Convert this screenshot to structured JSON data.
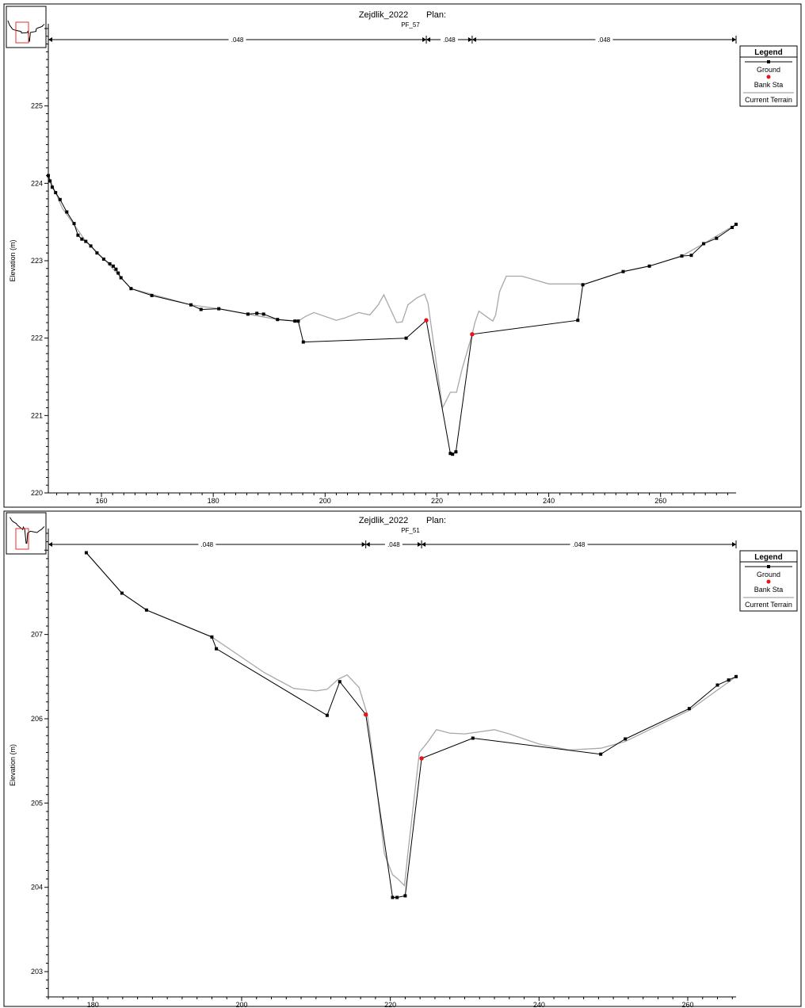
{
  "colors": {
    "ground": "#000000",
    "bank_sta": "#e8141b",
    "terrain": "#a8a8a8",
    "frame": "#000000",
    "inset_box": "#e03030"
  },
  "chart_data": [
    {
      "type": "line",
      "title": "Zejdlik_2022",
      "plan_label": "Plan:",
      "subtitle": "PF_57",
      "ylabel": "Elevation (m)",
      "xlabel": "",
      "xlim": [
        150.5,
        273.5
      ],
      "ylim": [
        220,
        226
      ],
      "x_ticks": [
        160,
        180,
        200,
        220,
        240,
        260
      ],
      "y_ticks": [
        220,
        221,
        222,
        223,
        224,
        225
      ],
      "legend": {
        "title": "Legend",
        "position": "top-right",
        "entries": [
          "Ground",
          "Bank Sta",
          "Current Terrain"
        ]
      },
      "mannings": {
        "breaks": [
          150.5,
          218.1,
          226.3,
          273.5
        ],
        "values": [
          ".048",
          ".048",
          ".048"
        ]
      },
      "series": [
        {
          "name": "Ground",
          "points": [
            [
              150.5,
              224.1
            ],
            [
              150.8,
              224.03
            ],
            [
              151.2,
              223.95
            ],
            [
              151.8,
              223.88
            ],
            [
              152.6,
              223.79
            ],
            [
              153.8,
              223.63
            ],
            [
              155.1,
              223.48
            ],
            [
              155.8,
              223.33
            ],
            [
              156.5,
              223.28
            ],
            [
              157.2,
              223.25
            ],
            [
              158.1,
              223.19
            ],
            [
              159.2,
              223.1
            ],
            [
              160.4,
              223.02
            ],
            [
              161.5,
              222.96
            ],
            [
              162.1,
              222.93
            ],
            [
              162.6,
              222.89
            ],
            [
              163.0,
              222.84
            ],
            [
              163.5,
              222.78
            ],
            [
              165.3,
              222.64
            ],
            [
              169.0,
              222.55
            ],
            [
              176.0,
              222.43
            ],
            [
              177.8,
              222.37
            ],
            [
              181.0,
              222.38
            ],
            [
              186.2,
              222.31
            ],
            [
              187.8,
              222.32
            ],
            [
              189.0,
              222.31
            ],
            [
              191.5,
              222.24
            ],
            [
              194.6,
              222.22
            ],
            [
              195.2,
              222.22
            ],
            [
              196.1,
              221.95
            ],
            [
              214.5,
              222.0
            ],
            [
              218.1,
              222.23
            ],
            [
              222.4,
              220.51
            ],
            [
              222.8,
              220.5
            ],
            [
              223.4,
              220.53
            ],
            [
              226.3,
              222.05
            ],
            [
              245.2,
              222.23
            ],
            [
              246.1,
              222.69
            ],
            [
              253.3,
              222.86
            ],
            [
              258.0,
              222.93
            ],
            [
              263.8,
              223.06
            ],
            [
              265.5,
              223.07
            ],
            [
              267.7,
              223.22
            ],
            [
              270.0,
              223.29
            ],
            [
              272.8,
              223.43
            ],
            [
              273.5,
              223.47
            ]
          ]
        },
        {
          "name": "Bank Sta",
          "points": [
            [
              218.1,
              222.23
            ],
            [
              226.3,
              222.05
            ]
          ]
        },
        {
          "name": "Current Terrain",
          "points": [
            [
              150.5,
              224.1
            ],
            [
              153.0,
              223.68
            ],
            [
              157.0,
              223.27
            ],
            [
              161.0,
              222.98
            ],
            [
              165.3,
              222.64
            ],
            [
              176.0,
              222.43
            ],
            [
              181.0,
              222.38
            ],
            [
              191.5,
              222.24
            ],
            [
              195.2,
              222.22
            ],
            [
              196.5,
              222.28
            ],
            [
              198.0,
              222.33
            ],
            [
              202.0,
              222.23
            ],
            [
              203.5,
              222.26
            ],
            [
              206.0,
              222.33
            ],
            [
              208.0,
              222.3
            ],
            [
              209.5,
              222.43
            ],
            [
              210.5,
              222.56
            ],
            [
              212.8,
              222.2
            ],
            [
              213.8,
              222.21
            ],
            [
              214.8,
              222.43
            ],
            [
              216.4,
              222.52
            ],
            [
              217.8,
              222.57
            ],
            [
              218.4,
              222.45
            ],
            [
              221.0,
              221.1
            ],
            [
              221.7,
              221.2
            ],
            [
              222.4,
              221.3
            ],
            [
              223.5,
              221.3
            ],
            [
              224.5,
              221.6
            ],
            [
              226.3,
              222.05
            ],
            [
              226.8,
              222.2
            ],
            [
              227.5,
              222.35
            ],
            [
              229.0,
              222.27
            ],
            [
              230.0,
              222.22
            ],
            [
              230.5,
              222.3
            ],
            [
              231.2,
              222.6
            ],
            [
              232.4,
              222.8
            ],
            [
              235.2,
              222.8
            ],
            [
              237.6,
              222.75
            ],
            [
              240.0,
              222.7
            ],
            [
              243.0,
              222.7
            ],
            [
              245.5,
              222.7
            ],
            [
              246.1,
              222.69
            ],
            [
              253.3,
              222.86
            ],
            [
              258.0,
              222.93
            ],
            [
              263.8,
              223.06
            ],
            [
              267.7,
              223.22
            ],
            [
              273.5,
              223.47
            ]
          ]
        }
      ]
    },
    {
      "type": "line",
      "title": "Zejdlik_2022",
      "plan_label": "Plan:",
      "subtitle": "PF_51",
      "ylabel": "Elevation (m)",
      "xlabel": "",
      "xlim": [
        174,
        266.5
      ],
      "ylim": [
        202.7,
        208.2
      ],
      "x_ticks": [
        180,
        200,
        220,
        240,
        260
      ],
      "y_ticks": [
        203,
        204,
        205,
        206,
        207
      ],
      "legend": {
        "title": "Legend",
        "position": "top-right",
        "entries": [
          "Ground",
          "Bank Sta",
          "Current Terrain"
        ]
      },
      "mannings": {
        "breaks": [
          174,
          216.7,
          224.2,
          266.5
        ],
        "values": [
          ".048",
          ".048",
          ".048"
        ]
      },
      "series": [
        {
          "name": "Ground",
          "points": [
            [
              179.1,
              207.97
            ],
            [
              183.9,
              207.49
            ],
            [
              187.2,
              207.29
            ],
            [
              196.0,
              206.97
            ],
            [
              196.6,
              206.83
            ],
            [
              211.5,
              206.04
            ],
            [
              213.2,
              206.44
            ],
            [
              216.7,
              206.05
            ],
            [
              220.3,
              203.88
            ],
            [
              220.9,
              203.88
            ],
            [
              222.0,
              203.9
            ],
            [
              224.2,
              205.53
            ],
            [
              231.1,
              205.77
            ],
            [
              248.3,
              205.58
            ],
            [
              251.6,
              205.76
            ],
            [
              260.2,
              206.12
            ],
            [
              264.0,
              206.4
            ],
            [
              265.5,
              206.46
            ],
            [
              266.5,
              206.5
            ]
          ]
        },
        {
          "name": "Bank Sta",
          "points": [
            [
              216.7,
              206.05
            ],
            [
              224.2,
              205.53
            ]
          ]
        },
        {
          "name": "Current Terrain",
          "points": [
            [
              179.1,
              207.97
            ],
            [
              183.9,
              207.49
            ],
            [
              187.2,
              207.29
            ],
            [
              196.0,
              206.97
            ],
            [
              203.0,
              206.55
            ],
            [
              207.0,
              206.36
            ],
            [
              210.0,
              206.33
            ],
            [
              211.5,
              206.35
            ],
            [
              213.0,
              206.47
            ],
            [
              214.2,
              206.52
            ],
            [
              215.8,
              206.37
            ],
            [
              216.9,
              206.05
            ],
            [
              218.0,
              205.3
            ],
            [
              219.2,
              204.4
            ],
            [
              220.3,
              204.15
            ],
            [
              221.0,
              204.1
            ],
            [
              221.9,
              204.02
            ],
            [
              222.3,
              204.35
            ],
            [
              223.0,
              204.9
            ],
            [
              223.9,
              205.6
            ],
            [
              225.0,
              205.72
            ],
            [
              226.2,
              205.87
            ],
            [
              228.0,
              205.83
            ],
            [
              230.0,
              205.82
            ],
            [
              234.0,
              205.87
            ],
            [
              236.0,
              205.82
            ],
            [
              240.0,
              205.7
            ],
            [
              244.0,
              205.63
            ],
            [
              248.3,
              205.65
            ],
            [
              251.6,
              205.73
            ],
            [
              260.2,
              206.1
            ],
            [
              266.5,
              206.5
            ]
          ]
        }
      ]
    }
  ]
}
